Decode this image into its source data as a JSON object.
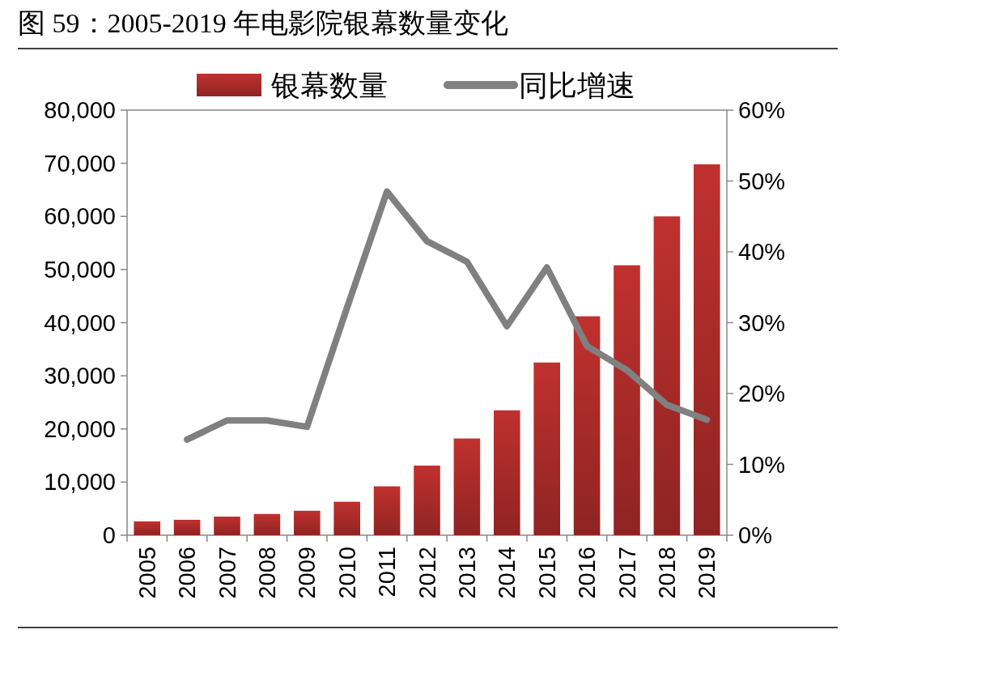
{
  "chart_data": {
    "type": "bar",
    "title": "图 59：2005-2019 年电影院银幕数量变化",
    "categories": [
      "2005",
      "2006",
      "2007",
      "2008",
      "2009",
      "2010",
      "2011",
      "2012",
      "2013",
      "2014",
      "2015",
      "2016",
      "2017",
      "2018",
      "2019"
    ],
    "series": [
      {
        "name": "银幕数量",
        "color": "#c0312f",
        "values": [
          2600,
          2900,
          3500,
          4000,
          4600,
          6300,
          9200,
          13100,
          18200,
          23500,
          32500,
          41200,
          50800,
          60000,
          69800
        ]
      },
      {
        "name": "同比增速",
        "type": "line",
        "axis": "y2",
        "color": "#808080",
        "values": [
          null,
          13.5,
          16.2,
          16.2,
          15.3,
          32.1,
          48.5,
          41.5,
          38.6,
          29.5,
          37.8,
          26.7,
          23.3,
          18.4,
          16.3
        ]
      }
    ],
    "ylim": [
      0,
      80000
    ],
    "yticks": [
      0,
      {
        "value": 10000,
        "label": "10,000"
      },
      {
        "value": 20000,
        "label": "20,000"
      },
      {
        "value": 30000,
        "label": "30,000"
      },
      {
        "value": 40000,
        "label": "40,000"
      },
      {
        "value": 50000,
        "label": "50,000"
      },
      {
        "value": 60000,
        "label": "60,000"
      },
      {
        "value": 70000,
        "label": "70,000"
      },
      {
        "value": 80000,
        "label": "80,000"
      }
    ],
    "y2lim": [
      0,
      60
    ],
    "y2ticks": [
      {
        "value": 0,
        "label": "0%"
      },
      {
        "value": 10,
        "label": "10%"
      },
      {
        "value": 20,
        "label": "20%"
      },
      {
        "value": 30,
        "label": "30%"
      },
      {
        "value": 40,
        "label": "40%"
      },
      {
        "value": 50,
        "label": "50%"
      },
      {
        "value": 60,
        "label": "60%"
      }
    ],
    "legend": "top",
    "grid": false
  }
}
